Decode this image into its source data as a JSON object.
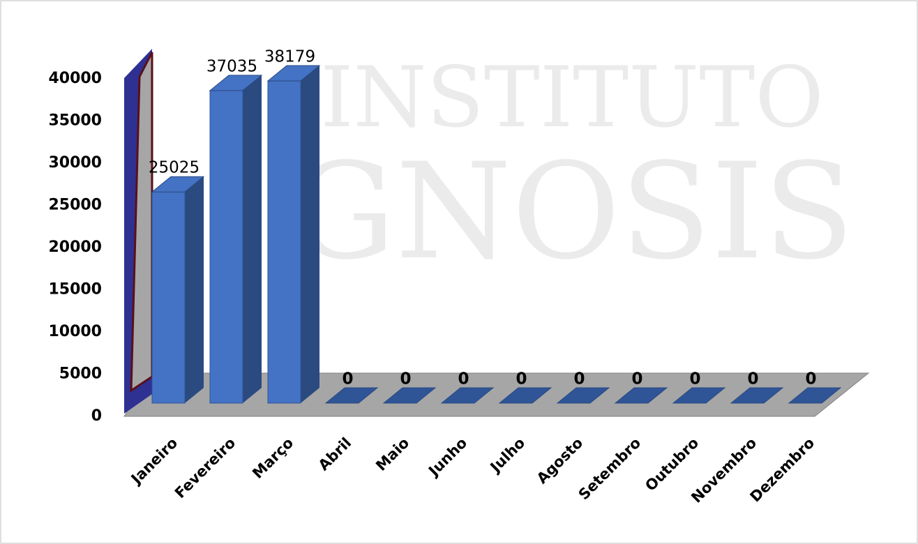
{
  "chart_data": {
    "type": "bar3d",
    "watermark": [
      "INSTITUTO",
      "GNOSIS"
    ],
    "categories": [
      "Janeiro",
      "Fevereiro",
      "Março",
      "Abril",
      "Maio",
      "Junho",
      "Julho",
      "Agosto",
      "Setembro",
      "Outubro",
      "Novembro",
      "Dezembro"
    ],
    "values": [
      25025,
      37035,
      38179,
      0,
      0,
      0,
      0,
      0,
      0,
      0,
      0,
      0
    ],
    "color": "#4472c4",
    "ylim": [
      0,
      40000
    ],
    "yticks": [
      0,
      5000,
      10000,
      15000,
      20000,
      25000,
      30000,
      35000,
      40000
    ]
  }
}
